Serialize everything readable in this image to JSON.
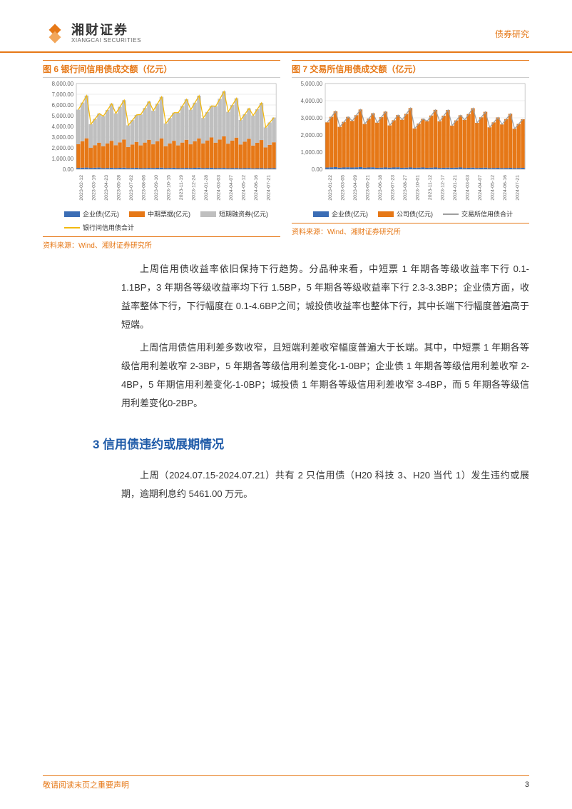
{
  "header": {
    "logo_cn": "湘财证券",
    "logo_en": "XIANGCAI SECURITIES",
    "category": "债券研究"
  },
  "chart6": {
    "title": "图 6 银行间信用债成交额（亿元）",
    "type": "bar_line_combo",
    "ylim": [
      0,
      8000
    ],
    "ytick_step": 1000,
    "ytick_format": ".00",
    "background_color": "#ffffff",
    "grid_color": "#dddddd",
    "plot_bg": "#ffffff",
    "categories": [
      "2023-02-12",
      "2023-03-19",
      "2023-04-23",
      "2023-05-28",
      "2023-07-02",
      "2023-08-06",
      "2023-09-10",
      "2023-10-15",
      "2023-11-19",
      "2023-12-24",
      "2024-01-28",
      "2024-03-03",
      "2024-04-07",
      "2024-05-12",
      "2024-06-16",
      "2024-07-21"
    ],
    "series": [
      {
        "name": "企业债(亿元)",
        "kind": "bar",
        "color": "#3b6db5",
        "values": [
          150,
          150,
          130,
          140,
          130,
          120,
          140,
          130,
          120,
          140,
          130,
          120,
          110,
          110,
          100,
          100
        ]
      },
      {
        "name": "中期票据(亿元)",
        "kind": "bar",
        "color": "#e67817",
        "values": [
          2600,
          2200,
          2400,
          2500,
          2300,
          2500,
          2600,
          2400,
          2500,
          2600,
          2700,
          2800,
          2700,
          2600,
          2500,
          2300
        ]
      },
      {
        "name": "短期融资券(亿元)",
        "kind": "bar",
        "color": "#bfbfbf",
        "values": [
          3800,
          2600,
          3300,
          3500,
          2400,
          3400,
          3700,
          2500,
          3600,
          3800,
          2800,
          4000,
          3500,
          2700,
          3300,
          2200
        ]
      },
      {
        "name": "银行间信用债合计",
        "kind": "line",
        "color": "#f2b90f",
        "values": [
          6550,
          4950,
          5830,
          6140,
          4830,
          6020,
          6440,
          5030,
          6220,
          6540,
          5630,
          6920,
          6310,
          5410,
          5900,
          4600
        ]
      }
    ],
    "source": "资料来源：Wind、湘财证券研究所"
  },
  "chart7": {
    "title": "图 7 交易所信用债成交额（亿元）",
    "type": "bar_line_combo",
    "ylim": [
      0,
      5000
    ],
    "ytick_step": 1000,
    "ytick_format": ".00",
    "background_color": "#ffffff",
    "grid_color": "#dddddd",
    "categories": [
      "2023-01-22",
      "2023-03-05",
      "2023-04-09",
      "2023-05-21",
      "2023-06-18",
      "2023-07-23",
      "2023-08-27",
      "2023-10-01",
      "2023-11-12",
      "2023-12-17",
      "2024-01-21",
      "2024-03-03",
      "2024-04-07",
      "2024-05-12",
      "2024-06-16",
      "2024-07-21"
    ],
    "series": [
      {
        "name": "企业债(亿元)",
        "kind": "bar",
        "color": "#3b6db5",
        "values": [
          120,
          110,
          120,
          110,
          100,
          110,
          100,
          100,
          100,
          90,
          100,
          90,
          90,
          80,
          80,
          80
        ]
      },
      {
        "name": "公司债(亿元)",
        "kind": "bar",
        "color": "#e67817",
        "values": [
          3100,
          2800,
          3200,
          3000,
          3100,
          2900,
          3300,
          2700,
          3200,
          3200,
          2900,
          3300,
          3100,
          2800,
          3000,
          2700
        ]
      },
      {
        "name": "交易所信用债合计",
        "kind": "line",
        "color": "#9f9f9f",
        "values": [
          3220,
          2910,
          3320,
          3110,
          3200,
          3010,
          3400,
          2800,
          3300,
          3290,
          3000,
          3390,
          3190,
          2880,
          3080,
          2780
        ]
      }
    ],
    "source": "资料来源：Wind、湘财证券研究所"
  },
  "paragraphs": {
    "p1": "上周信用债收益率依旧保持下行趋势。分品种来看，中短票 1 年期各等级收益率下行 0.1-1.1BP，3 年期各等级收益率均下行 1.5BP，5 年期各等级收益率下行 2.3-3.3BP；企业债方面，收益率整体下行，下行幅度在 0.1-4.6BP之间；城投债收益率也整体下行，其中长端下行幅度普遍高于短端。",
    "p2": "上周信用债信用利差多数收窄，且短端利差收窄幅度普遍大于长端。其中，中短票 1 年期各等级信用利差收窄 2-3BP，5 年期各等级信用利差变化-1-0BP；企业债 1 年期各等级信用利差收窄 2-4BP，5 年期信用利差变化-1-0BP；城投债 1 年期各等级信用利差收窄 3-4BP，而 5 年期各等级信用利差变化0-2BP。"
  },
  "section3": {
    "heading": "3 信用债违约或展期情况",
    "p1": "上周（2024.07.15-2024.07.21）共有 2 只信用债（H20 科技 3、H20 当代 1）发生违约或展期，逾期利息约 5461.00 万元。"
  },
  "footer": {
    "left": "敬请阅读末页之重要声明",
    "page": "3"
  },
  "colors": {
    "brand_orange": "#e67817",
    "heading_blue": "#1e5aa8"
  }
}
